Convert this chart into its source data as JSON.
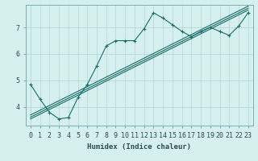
{
  "xlabel": "Humidex (Indice chaleur)",
  "bg_color": "#d6f0f0",
  "grid_color": "#b8d8d8",
  "line_color": "#1a6e6a",
  "xlim": [
    -0.5,
    23.5
  ],
  "ylim": [
    3.3,
    7.85
  ],
  "yticks": [
    4,
    5,
    6,
    7
  ],
  "xticks": [
    0,
    1,
    2,
    3,
    4,
    5,
    6,
    7,
    8,
    9,
    10,
    11,
    12,
    13,
    14,
    15,
    16,
    17,
    18,
    19,
    20,
    21,
    22,
    23
  ],
  "lines": [
    {
      "x": [
        0,
        1,
        2,
        3,
        4,
        5,
        6,
        7,
        8,
        9,
        10,
        11,
        12,
        13,
        14,
        15,
        16,
        17,
        18,
        19,
        20,
        21,
        22,
        23
      ],
      "y": [
        4.85,
        4.3,
        3.8,
        3.55,
        3.6,
        4.35,
        4.85,
        5.55,
        6.3,
        6.5,
        6.5,
        6.5,
        6.95,
        7.55,
        7.35,
        7.1,
        6.85,
        6.65,
        6.85,
        7.0,
        6.85,
        6.7,
        7.05,
        7.55
      ],
      "marker": "+"
    },
    {
      "x": [
        0,
        23
      ],
      "y": [
        3.55,
        7.65
      ],
      "marker": null
    },
    {
      "x": [
        0,
        23
      ],
      "y": [
        3.62,
        7.72
      ],
      "marker": null
    },
    {
      "x": [
        0,
        23
      ],
      "y": [
        3.7,
        7.8
      ],
      "marker": null
    }
  ]
}
